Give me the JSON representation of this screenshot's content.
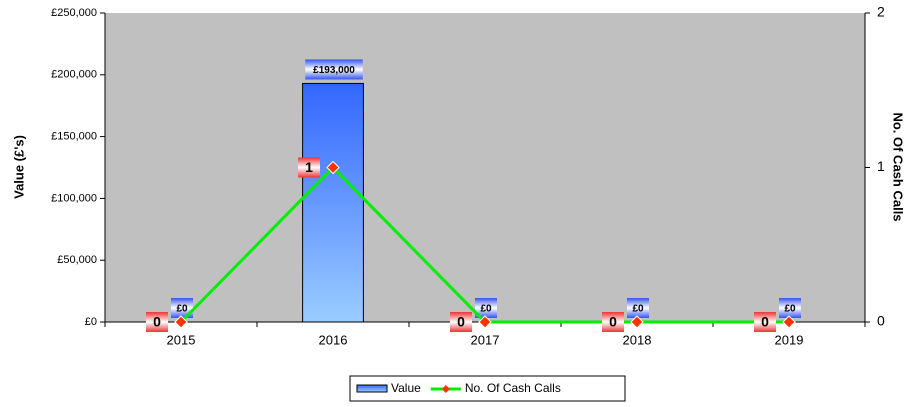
{
  "chart_data": {
    "type": "bar",
    "categories": [
      "2015",
      "2016",
      "2017",
      "2018",
      "2019"
    ],
    "series": [
      {
        "name": "Value",
        "type": "bar",
        "color": "#3366ff",
        "values": [
          0,
          193000,
          0,
          0,
          0
        ],
        "value_labels": [
          "£0",
          "£193,000",
          "£0",
          "£0",
          "£0"
        ]
      },
      {
        "name": "No. Of Cash Calls",
        "type": "line",
        "axis": "y2",
        "color": "#00ee00",
        "marker_color": "#ff3300",
        "values": [
          0,
          1,
          0,
          0,
          0
        ]
      }
    ],
    "ylabel": "Value (£'s)",
    "y2label": "No. Of Cash Calls",
    "ylim": [
      0,
      250000
    ],
    "yticks": [
      {
        "value": 0,
        "label": "£0"
      },
      {
        "value": 50000,
        "label": "£50,000"
      },
      {
        "value": 100000,
        "label": "£100,000"
      },
      {
        "value": 150000,
        "label": "£150,000"
      },
      {
        "value": 200000,
        "label": "£200,000"
      },
      {
        "value": 250000,
        "label": "£250,000"
      }
    ],
    "y2lim": [
      0,
      2
    ],
    "y2ticks": [
      0,
      1,
      2
    ],
    "legend": "bottom"
  }
}
